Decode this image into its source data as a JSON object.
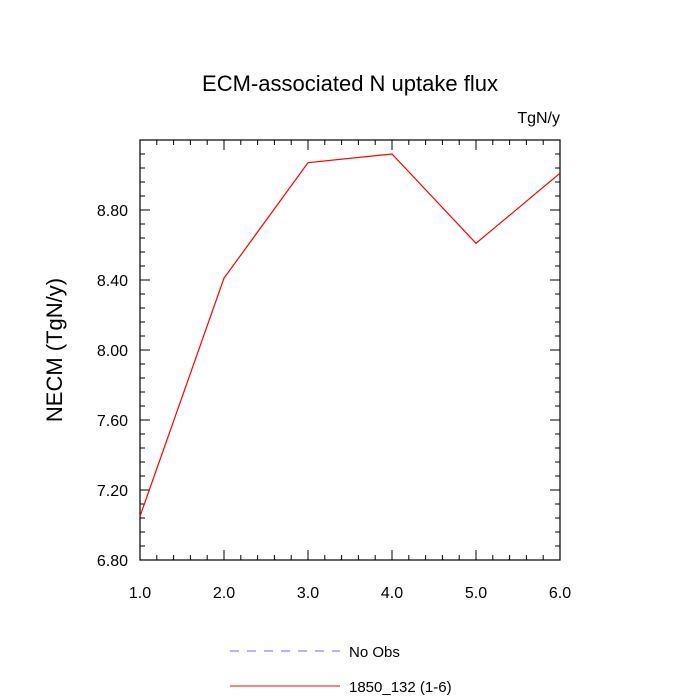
{
  "chart_data": {
    "type": "line",
    "title": "ECM-associated N uptake flux",
    "units_label": "TgN/y",
    "ylabel": "NECM  (TgN/y)",
    "xlabel": "",
    "xlim": [
      1.0,
      6.0
    ],
    "ylim": [
      6.8,
      9.2
    ],
    "x_ticks": [
      "1.0",
      "2.0",
      "3.0",
      "4.0",
      "5.0",
      "6.0"
    ],
    "y_ticks": [
      "6.80",
      "7.20",
      "7.60",
      "8.00",
      "8.40",
      "8.80"
    ],
    "grid": false,
    "legend_position": "bottom",
    "series": [
      {
        "name": "No Obs",
        "color": "#6b6bff",
        "dash": "dashed",
        "x": [],
        "y": []
      },
      {
        "name": "1850_132 (1-6)",
        "color": "#ff0000",
        "dash": "solid",
        "x": [
          1.0,
          2.0,
          3.0,
          4.0,
          5.0,
          6.0
        ],
        "y": [
          7.05,
          8.41,
          9.07,
          9.12,
          8.61,
          9.01
        ]
      }
    ]
  }
}
